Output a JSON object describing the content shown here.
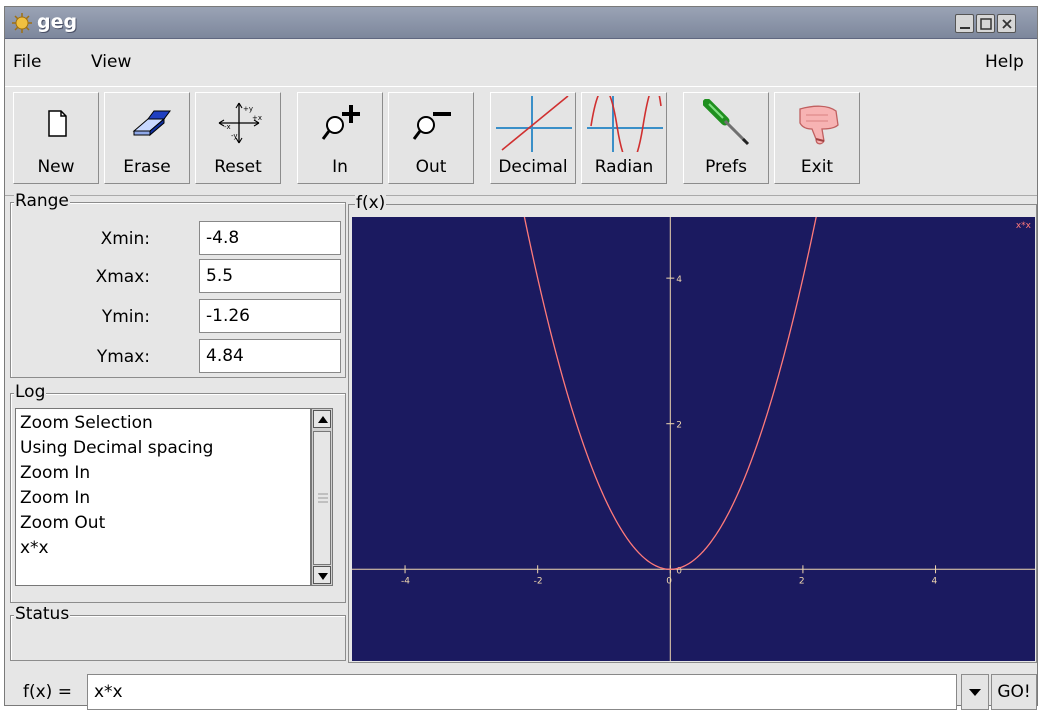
{
  "window": {
    "title": "geg"
  },
  "menu": {
    "file": "File",
    "view": "View",
    "help": "Help"
  },
  "toolbar": {
    "new": "New",
    "erase": "Erase",
    "reset": "Reset",
    "in": "In",
    "out": "Out",
    "decimal": "Decimal",
    "radian": "Radian",
    "prefs": "Prefs",
    "exit": "Exit"
  },
  "range": {
    "title": "Range",
    "xmin_label": "Xmin:",
    "xmin": "-4.8",
    "xmax_label": "Xmax:",
    "xmax": "5.5",
    "ymin_label": "Ymin:",
    "ymin": "-1.26",
    "ymax_label": "Ymax:",
    "ymax": "4.84"
  },
  "log": {
    "title": "Log",
    "lines": [
      "Zoom Selection",
      "Using Decimal spacing",
      "Zoom In",
      "Zoom In",
      "Zoom Out",
      "x*x"
    ]
  },
  "status": {
    "title": "Status",
    "text": ""
  },
  "graph": {
    "title": "f(x)",
    "legend": "x*x",
    "colors": {
      "background": "#1b1a60",
      "axis": "#f0d8b0",
      "curve": "#ff7a7a"
    }
  },
  "chart_data": {
    "type": "line",
    "title": "f(x)",
    "series": [
      {
        "name": "x*x",
        "function": "x*x"
      }
    ],
    "xlim": [
      -4.8,
      5.5
    ],
    "ylim": [
      -1.26,
      4.84
    ],
    "x_ticks": [
      -4,
      -2,
      0,
      2,
      4
    ],
    "y_ticks": [
      0,
      2,
      4
    ],
    "grid": false,
    "legend_position": "top-right"
  },
  "function_bar": {
    "label": "f(x) =",
    "value": "x*x",
    "go": "GO!"
  }
}
